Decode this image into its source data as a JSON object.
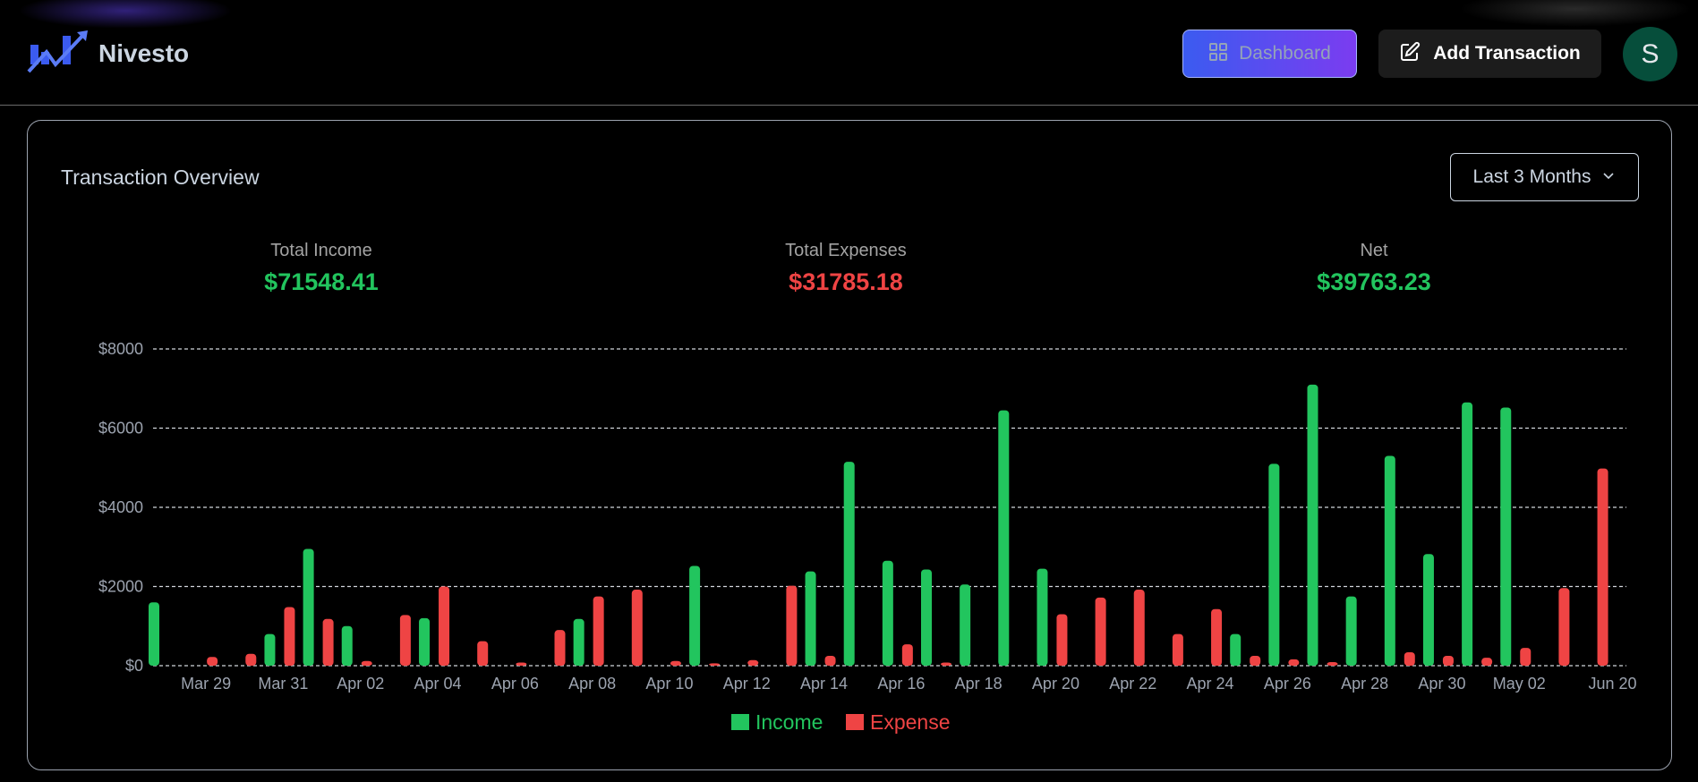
{
  "app": {
    "name": "Nivesto",
    "logo_icon": "trending-chart-logo-icon"
  },
  "nav": {
    "dashboard_label": "Dashboard",
    "dashboard_icon": "grid-icon",
    "add_label": "Add Transaction",
    "add_icon": "edit-icon",
    "avatar_initial": "S"
  },
  "overview": {
    "title": "Transaction Overview",
    "period": "Last 3 Months",
    "period_icon": "chevron-down-icon",
    "stats": {
      "income_label": "Total Income",
      "income_value": "$71548.41",
      "expenses_label": "Total Expenses",
      "expenses_value": "$31785.18",
      "net_label": "Net",
      "net_value": "$39763.23"
    }
  },
  "colors": {
    "income": "#22c55e",
    "expense": "#ef4444",
    "accent_start": "#3b5bf0",
    "accent_end": "#7b3cf0"
  },
  "chart_data": {
    "type": "bar",
    "ylim": [
      0,
      8000
    ],
    "yticks": [
      "$0",
      "$2000",
      "$4000",
      "$6000",
      "$8000"
    ],
    "ytick_values": [
      0,
      2000,
      4000,
      6000,
      8000
    ],
    "grid": true,
    "legend_position": "bottom",
    "xtick_labels": [
      "Mar 29",
      "Mar 31",
      "Apr 02",
      "Apr 04",
      "Apr 06",
      "Apr 08",
      "Apr 10",
      "Apr 12",
      "Apr 14",
      "Apr 16",
      "Apr 18",
      "Apr 20",
      "Apr 22",
      "Apr 24",
      "Apr 26",
      "Apr 28",
      "Apr 30",
      "May 02",
      "Jun 20"
    ],
    "categories": [
      "Mar 28",
      "Mar 29",
      "Mar 30",
      "Mar 31",
      "Apr 01",
      "Apr 02",
      "Apr 03",
      "Apr 04",
      "Apr 05",
      "Apr 06",
      "Apr 07",
      "Apr 08",
      "Apr 09",
      "Apr 10",
      "Apr 11",
      "Apr 12",
      "Apr 13",
      "Apr 14",
      "Apr 15",
      "Apr 16",
      "Apr 17",
      "Apr 18",
      "Apr 19",
      "Apr 20",
      "Apr 21",
      "Apr 22",
      "Apr 23",
      "Apr 24",
      "Apr 25",
      "Apr 26",
      "Apr 27",
      "Apr 28",
      "Apr 29",
      "Apr 30",
      "May 01",
      "May 02",
      "May 03",
      "Jun 20"
    ],
    "series": [
      {
        "name": "Income",
        "values": [
          1600,
          0,
          0,
          800,
          2950,
          1000,
          0,
          1200,
          0,
          0,
          0,
          1180,
          0,
          0,
          2520,
          0,
          0,
          2380,
          5150,
          2650,
          2430,
          2050,
          6450,
          2450,
          0,
          0,
          0,
          0,
          800,
          5100,
          7100,
          1750,
          5300,
          2820,
          6650,
          6520,
          0,
          0
        ]
      },
      {
        "name": "Expense",
        "values": [
          0,
          220,
          300,
          1480,
          1180,
          120,
          1280,
          2000,
          620,
          80,
          900,
          1750,
          1920,
          120,
          60,
          140,
          2020,
          250,
          0,
          540,
          80,
          0,
          0,
          1300,
          1720,
          1920,
          800,
          1430,
          250,
          160,
          90,
          0,
          340,
          250,
          200,
          450,
          1960,
          4980
        ]
      }
    ]
  }
}
